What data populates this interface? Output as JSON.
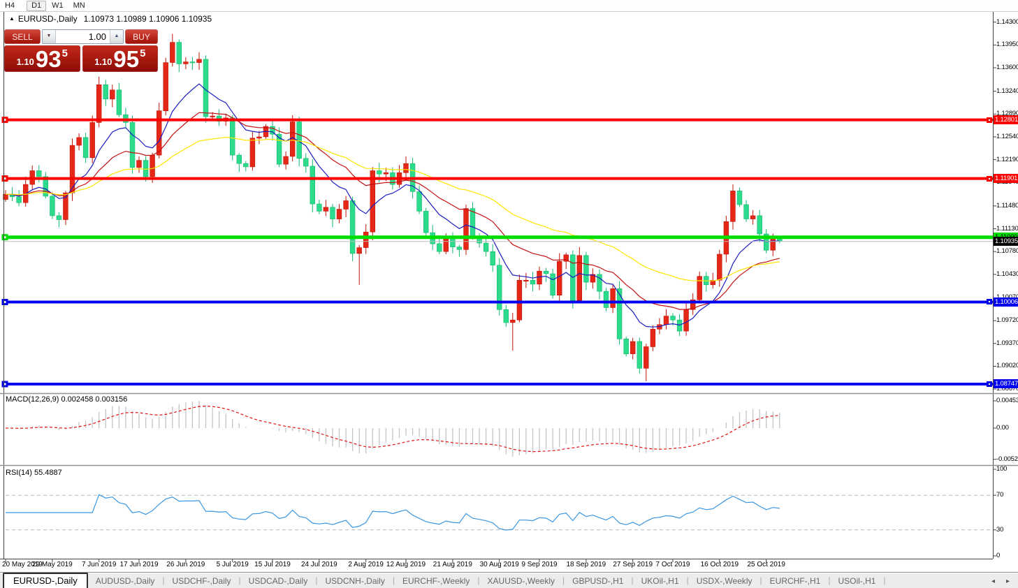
{
  "toolbar": {
    "timeframes": [
      {
        "label": "H4",
        "active": false
      },
      {
        "label": "D1",
        "active": true
      },
      {
        "label": "W1",
        "active": false
      },
      {
        "label": "MN",
        "active": false
      }
    ],
    "separator_after": [
      "H4",
      "MN"
    ]
  },
  "chart": {
    "title": {
      "collapse": "▲",
      "symbol": "EURUSD-,Daily",
      "ohlc": "1.10973 1.10989 1.10906 1.10935"
    }
  },
  "trade": {
    "sell_label": "SELL",
    "buy_label": "BUY",
    "volume": "1.00",
    "down_arrow": "▼",
    "up_arrow": "▲",
    "sell": {
      "prefix": "1.10",
      "big": "93",
      "sup": "5"
    },
    "buy": {
      "prefix": "1.10",
      "big": "95",
      "sup": "5"
    }
  },
  "panes": {
    "macd_label": "MACD(12,26,9) 0.002458 0.003156",
    "macd_axis": [
      "0.004538",
      "0.00",
      "-0.00520"
    ],
    "rsi_label": "RSI(14) 55.4887",
    "rsi_axis": [
      "100",
      "70",
      "30",
      "0"
    ]
  },
  "price_axis": {
    "ticks": [
      "1.14300",
      "1.13950",
      "1.13600",
      "1.13240",
      "1.12890",
      "1.12540",
      "1.12190",
      "1.11840",
      "1.11480",
      "1.11130",
      "1.10780",
      "1.10430",
      "1.10070",
      "1.09720",
      "1.09370",
      "1.09020",
      "1.08670"
    ],
    "badges": [
      {
        "text": "1.12801",
        "price": 1.12801,
        "bg": "#ff0000",
        "fg": "#ffffff",
        "marker": true
      },
      {
        "text": "1.11901",
        "price": 1.11901,
        "bg": "#ff0000",
        "fg": "#ffffff",
        "marker": true
      },
      {
        "text": "1.11000",
        "price": 1.11,
        "bg": "#00dd00",
        "fg": "#000000",
        "marker": false
      },
      {
        "text": "1.10935",
        "price": 1.10935,
        "bg": "#000000",
        "fg": "#ffffff",
        "marker": false
      },
      {
        "text": "1.10006",
        "price": 1.10006,
        "bg": "#0000ee",
        "fg": "#ffffff",
        "marker": true
      },
      {
        "text": "1.08747",
        "price": 1.08747,
        "bg": "#0000ee",
        "fg": "#ffffff",
        "marker": true
      }
    ]
  },
  "chart_data": {
    "type": "candlestick",
    "symbol": "EURUSD",
    "timeframe": "Daily",
    "up_color": "#e52718",
    "up_border": "#c01508",
    "down_color": "#2cdc8c",
    "down_border": "#12b96d",
    "first_open": 1.1158,
    "closes": [
      1.1166,
      1.1162,
      1.1153,
      1.1181,
      1.1202,
      1.1193,
      1.1163,
      1.1133,
      1.1127,
      1.1168,
      1.1241,
      1.1253,
      1.1222,
      1.1276,
      1.1334,
      1.1312,
      1.1326,
      1.1288,
      1.1276,
      1.1207,
      1.1218,
      1.1193,
      1.1226,
      1.1294,
      1.1368,
      1.1399,
      1.1366,
      1.1369,
      1.1368,
      1.1373,
      1.1285,
      1.1286,
      1.1278,
      1.1283,
      1.1226,
      1.1213,
      1.1208,
      1.1252,
      1.1254,
      1.127,
      1.1258,
      1.1212,
      1.1224,
      1.1277,
      1.1221,
      1.1209,
      1.1151,
      1.114,
      1.1146,
      1.1128,
      1.1143,
      1.1156,
      1.1075,
      1.1084,
      1.1108,
      1.1202,
      1.1197,
      1.1199,
      1.1181,
      1.1199,
      1.1213,
      1.117,
      1.114,
      1.1107,
      1.109,
      1.1078,
      1.1099,
      1.1085,
      1.1081,
      1.1144,
      1.1102,
      1.1091,
      1.1078,
      1.1057,
      1.0989,
      1.0969,
      1.0973,
      1.1034,
      1.1034,
      1.1028,
      1.1048,
      1.1044,
      1.1011,
      1.1063,
      1.1073,
      1.1003,
      1.1072,
      1.1031,
      1.1043,
      1.1017,
      1.0992,
      1.1021,
      1.0944,
      1.0921,
      1.094,
      1.0899,
      1.0932,
      1.0959,
      1.0966,
      1.0979,
      1.0973,
      1.0956,
      1.0989,
      1.1004,
      1.104,
      1.1027,
      1.1034,
      1.1074,
      1.1124,
      1.1171,
      1.115,
      1.1128,
      1.1133,
      1.1105,
      1.108,
      1.1099,
      1.10935
    ],
    "overrides": {
      "25": {
        "h": 1.1412
      },
      "53": {
        "l": 1.1027
      },
      "76": {
        "l": 1.0926
      },
      "96": {
        "l": 1.0879
      },
      "116": {
        "o": 1.10973,
        "h": 1.10989,
        "l": 1.10906,
        "c": 1.10935
      }
    },
    "moving_averages": [
      {
        "period": 10,
        "color": "#1c1cc0"
      },
      {
        "period": 22,
        "color": "#c41111"
      },
      {
        "period": 45,
        "color": "#ffe400"
      }
    ],
    "macd": {
      "fast": 12,
      "slow": 26,
      "signal": 9,
      "hist_color": "#c4c4c4",
      "signal_color": "#e01414"
    },
    "rsi": {
      "period": 14,
      "color": "#3a96e0",
      "levels": [
        70,
        30
      ]
    },
    "hlines": [
      {
        "price": 1.12801,
        "color": "#ff0000",
        "width": 4,
        "marker": true
      },
      {
        "price": 1.11901,
        "color": "#ff0000",
        "width": 4,
        "marker": true
      },
      {
        "price": 1.11,
        "color": "#00dd00",
        "width": 5,
        "marker": true
      },
      {
        "price": 1.10935,
        "color": "#bdbdbd",
        "width": 1,
        "marker": false
      },
      {
        "price": 1.10006,
        "color": "#0000ee",
        "width": 4,
        "marker": true
      },
      {
        "price": 1.08747,
        "color": "#0000ee",
        "width": 4,
        "marker": true
      }
    ],
    "date_ticks": [
      {
        "t": "20 May 2019",
        "i": 0
      },
      {
        "t": "29 May 2019",
        "i": 7
      },
      {
        "t": "7 Jun 2019",
        "i": 14
      },
      {
        "t": "17 Jun 2019",
        "i": 20
      },
      {
        "t": "26 Jun 2019",
        "i": 27
      },
      {
        "t": "5 Jul 2019",
        "i": 34
      },
      {
        "t": "15 Jul 2019",
        "i": 40
      },
      {
        "t": "24 Jul 2019",
        "i": 47
      },
      {
        "t": "2 Aug 2019",
        "i": 54
      },
      {
        "t": "12 Aug 2019",
        "i": 60
      },
      {
        "t": "21 Aug 2019",
        "i": 67
      },
      {
        "t": "30 Aug 2019",
        "i": 74
      },
      {
        "t": "9 Sep 2019",
        "i": 80
      },
      {
        "t": "18 Sep 2019",
        "i": 87
      },
      {
        "t": "27 Sep 2019",
        "i": 94
      },
      {
        "t": "7 Oct 2019",
        "i": 100
      },
      {
        "t": "16 Oct 2019",
        "i": 107
      },
      {
        "t": "25 Oct 2019",
        "i": 114
      }
    ]
  },
  "tabs": {
    "scroll_left": "◂",
    "scroll_right": "▸",
    "items": [
      {
        "label": "EURUSD-,Daily",
        "active": true
      },
      {
        "label": "AUDUSD-,Daily",
        "active": false
      },
      {
        "label": "USDCHF-,Daily",
        "active": false
      },
      {
        "label": "USDCAD-,Daily",
        "active": false
      },
      {
        "label": "USDCNH-,Daily",
        "active": false
      },
      {
        "label": "EURCHF-,Weekly",
        "active": false
      },
      {
        "label": "XAUUSD-,Weekly",
        "active": false
      },
      {
        "label": "GBPUSD-,H1",
        "active": false
      },
      {
        "label": "UKOil-,H1",
        "active": false
      },
      {
        "label": "USDX-,Weekly",
        "active": false
      },
      {
        "label": "EURCHF-,H1",
        "active": false
      },
      {
        "label": "USOil-,H1",
        "active": false
      }
    ]
  }
}
